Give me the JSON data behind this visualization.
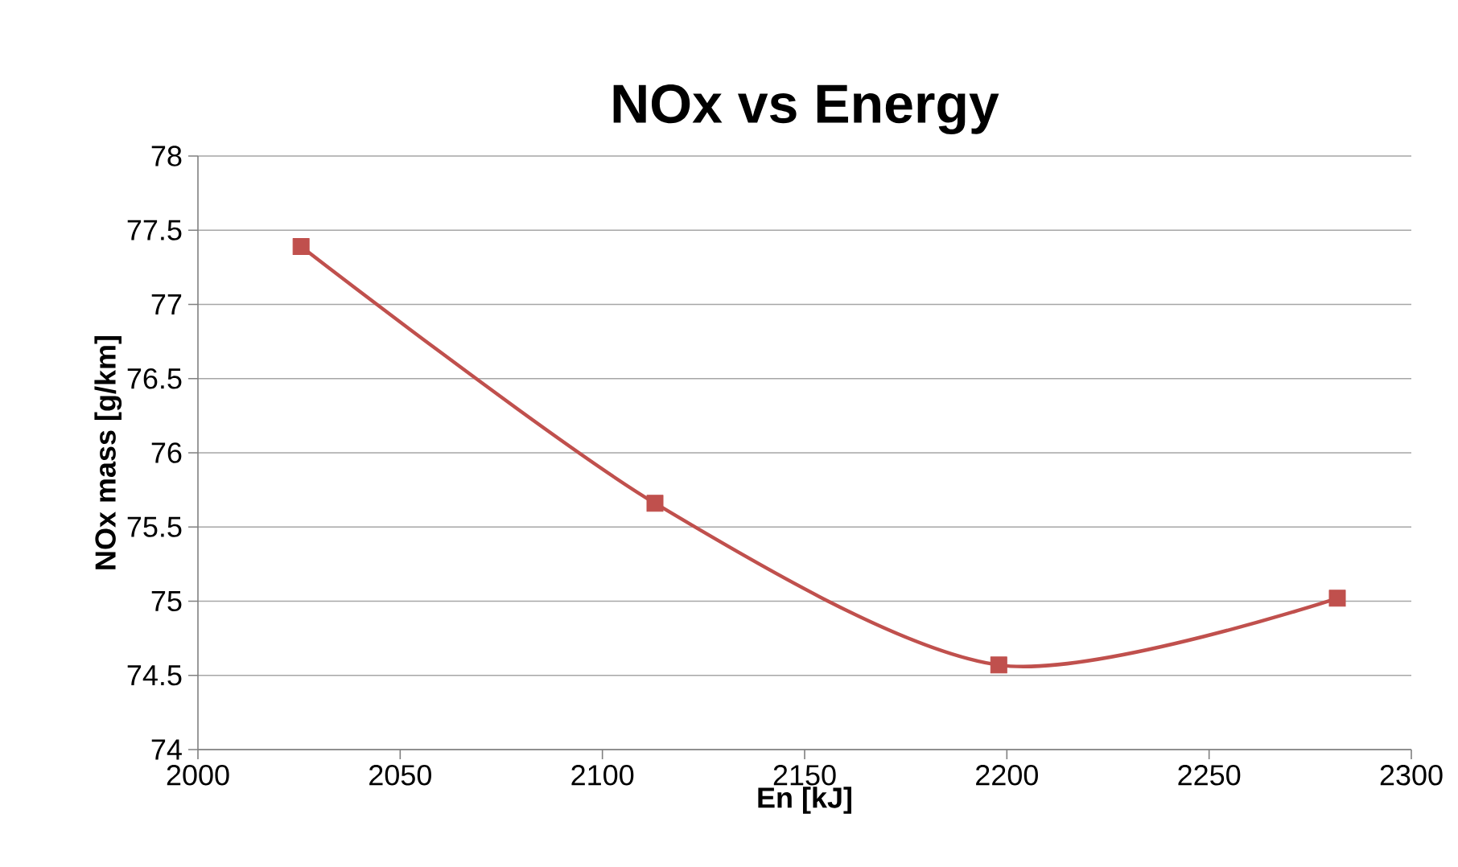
{
  "chart_data": {
    "type": "line",
    "title": "NOx vs Energy",
    "xlabel": "En [kJ]",
    "ylabel": "NOx mass  [g/km]",
    "x": [
      2025.5,
      2113,
      2198,
      2281.7
    ],
    "series": [
      {
        "color": "#c0504d",
        "values": [
          77.39,
          75.66,
          74.57,
          75.02
        ]
      }
    ],
    "xlim": [
      2000,
      2300
    ],
    "xticks": [
      2000,
      2050,
      2100,
      2150,
      2200,
      2250,
      2300
    ],
    "ylim": [
      74,
      78
    ],
    "yticks": [
      74,
      74.5,
      75,
      75.5,
      76,
      76.5,
      77,
      77.5,
      78
    ],
    "grid": "y",
    "marker": "square",
    "line_style": "solid"
  }
}
